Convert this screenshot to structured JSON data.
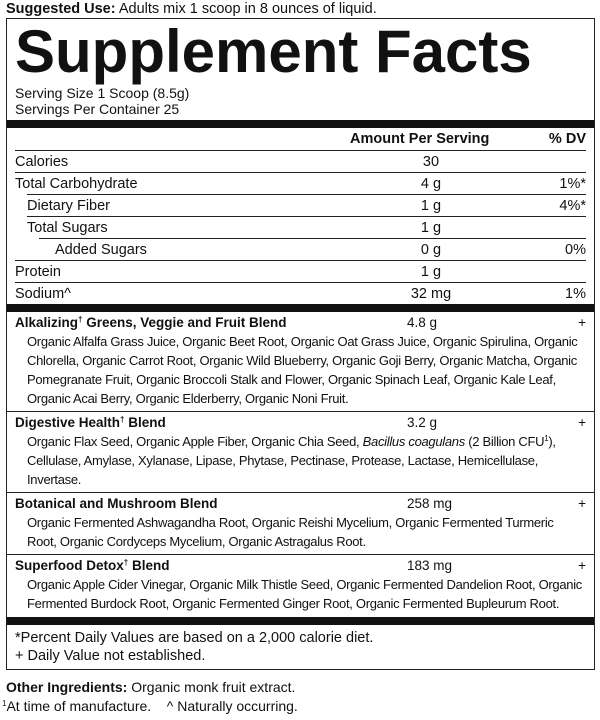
{
  "suggested_use": {
    "label": "Suggested Use:",
    "text": "Adults mix 1 scoop in 8 ounces of liquid."
  },
  "title": "Supplement Facts",
  "serving_size": "Serving Size 1 Scoop (8.5g)",
  "servings_per_container": "Servings Per Container 25",
  "header": {
    "amount": "Amount Per Serving",
    "dv": "% DV"
  },
  "nutrients": [
    {
      "name": "Calories",
      "amount": "30",
      "dv": ""
    },
    {
      "name": "Total Carbohydrate",
      "amount": "4 g",
      "dv": "1%*"
    },
    {
      "name": "Dietary Fiber",
      "amount": "1 g",
      "dv": "4%*"
    },
    {
      "name": "Total Sugars",
      "amount": "1 g",
      "dv": ""
    },
    {
      "name": "Added Sugars",
      "amount": "0 g",
      "dv": "0%"
    },
    {
      "name": "Protein",
      "amount": "1 g",
      "dv": ""
    },
    {
      "name": "Sodium^",
      "amount": "32 mg",
      "dv": "1%"
    }
  ],
  "blends": [
    {
      "name_a": "Alkalizing",
      "dagger": "†",
      "name_b": " Greens, Veggie and Fruit Blend",
      "amount": "4.8 g",
      "dv": "+",
      "lines": [
        "Organic Alfalfa Grass Juice, Organic Beet Root, Organic Oat Grass Juice, Organic Spirulina, Organic",
        "Chlorella, Organic Carrot Root, Organic Wild Blueberry, Organic Goji Berry, Organic Matcha, Organic",
        "Pomegranate Fruit, Organic Broccoli Stalk and Flower, Organic Spinach Leaf, Organic Kale Leaf,",
        "Organic Acai Berry, Organic Elderberry, Organic Noni Fruit."
      ]
    },
    {
      "name_a": "Digestive Health",
      "dagger": "†",
      "name_b": " Blend",
      "amount": "3.2 g",
      "dv": "+",
      "line1_a": "Organic Flax Seed, Organic Apple Fiber, Organic Chia Seed, ",
      "line1_italic": "Bacillus coagulans",
      "line1_b": " (2 Billion CFU",
      "line1_sup": "1",
      "line1_c": "),",
      "line2": "Cellulase, Amylase, Xylanase, Lipase, Phytase, Pectinase, Protease, Lactase, Hemicellulase, Invertase."
    },
    {
      "name_a": "Botanical and Mushroom Blend",
      "dagger": "",
      "name_b": "",
      "amount": "258 mg",
      "dv": "+",
      "lines": [
        "Organic Fermented Ashwagandha Root, Organic Reishi Mycelium, Organic Fermented Turmeric",
        "Root, Organic Cordyceps Mycelium, Organic Astragalus Root."
      ]
    },
    {
      "name_a": "Superfood Detox",
      "dagger": "†",
      "name_b": " Blend",
      "amount": "183 mg",
      "dv": "+",
      "lines": [
        "Organic Apple Cider Vinegar, Organic Milk Thistle Seed, Organic Fermented Dandelion Root, Organic",
        "Fermented Burdock Root, Organic Fermented Ginger Root, Organic Fermented Bupleurum Root."
      ]
    }
  ],
  "footnotes": [
    "*Percent Daily Values are based on a 2,000 calorie diet.",
    "+ Daily Value not established."
  ],
  "other_ingredients": {
    "label": "Other Ingredients:",
    "text": "Organic monk fruit extract."
  },
  "bottom_note": {
    "sup": "1",
    "a": "At time of manufacture.",
    "b": "^ Naturally occurring."
  }
}
